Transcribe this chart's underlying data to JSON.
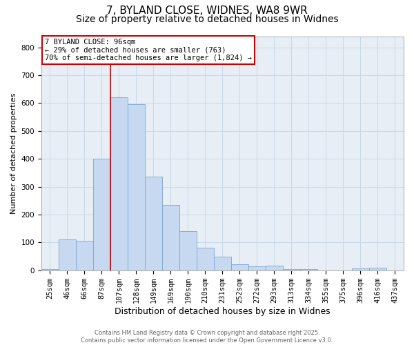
{
  "title_line1": "7, BYLAND CLOSE, WIDNES, WA8 9WR",
  "title_line2": "Size of property relative to detached houses in Widnes",
  "xlabel": "Distribution of detached houses by size in Widnes",
  "ylabel": "Number of detached properties",
  "categories": [
    "25sqm",
    "46sqm",
    "66sqm",
    "87sqm",
    "107sqm",
    "128sqm",
    "149sqm",
    "169sqm",
    "190sqm",
    "210sqm",
    "231sqm",
    "252sqm",
    "272sqm",
    "293sqm",
    "313sqm",
    "334sqm",
    "355sqm",
    "375sqm",
    "396sqm",
    "416sqm",
    "437sqm"
  ],
  "values": [
    5,
    110,
    107,
    400,
    620,
    595,
    335,
    235,
    140,
    82,
    50,
    22,
    15,
    17,
    5,
    4,
    0,
    0,
    7,
    8,
    0
  ],
  "bar_color": "#c6d9f0",
  "bar_edge_color": "#7ba7d4",
  "red_line_x": 3.5,
  "annotation_text": "7 BYLAND CLOSE: 96sqm\n← 29% of detached houses are smaller (763)\n70% of semi-detached houses are larger (1,824) →",
  "annotation_box_color": "#ffffff",
  "annotation_box_edge": "#cc0000",
  "annotation_fontsize": 7.5,
  "title_fontsize1": 11,
  "title_fontsize2": 10,
  "xlabel_fontsize": 9,
  "ylabel_fontsize": 8,
  "tick_fontsize": 7.5,
  "footer_text": "Contains HM Land Registry data © Crown copyright and database right 2025.\nContains public sector information licensed under the Open Government Licence v3.0.",
  "ylim": [
    0,
    840
  ],
  "yticks": [
    0,
    100,
    200,
    300,
    400,
    500,
    600,
    700,
    800
  ],
  "grid_color": "#c8d8e8",
  "background_color": "#e8eef5"
}
